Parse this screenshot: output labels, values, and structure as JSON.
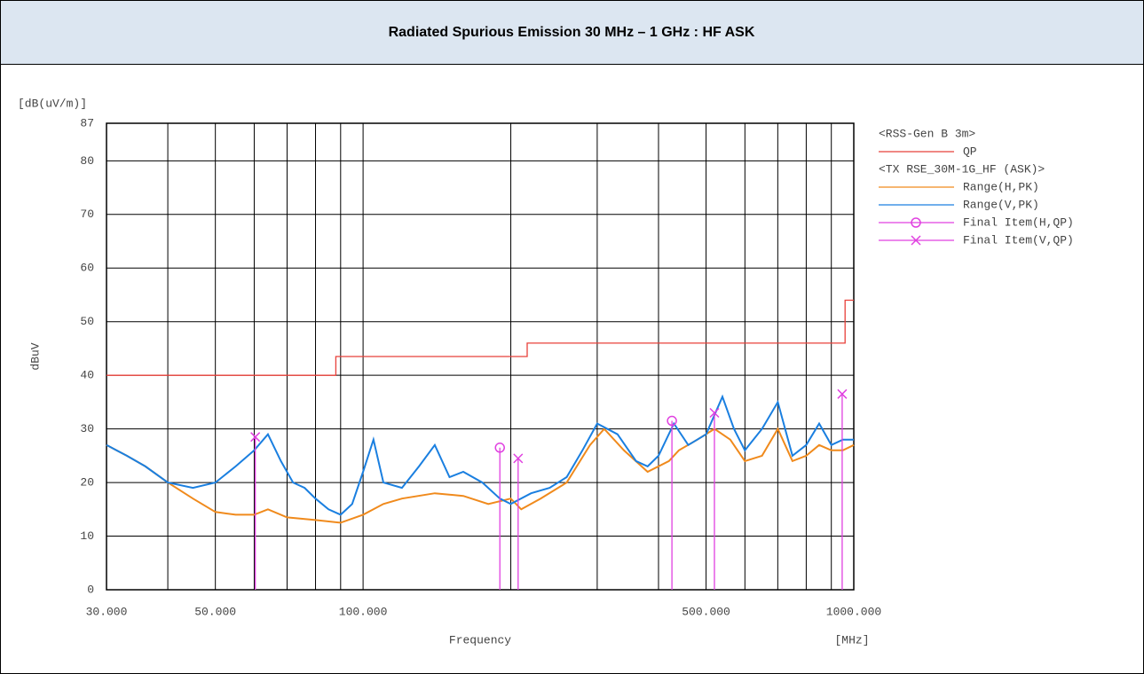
{
  "header": {
    "title": "Radiated Spurious Emission 30 MHz – 1 GHz : HF ASK"
  },
  "chart_data": {
    "type": "line",
    "y_unit": "[dB(uV/m)]",
    "ylabel": "dBuV",
    "xlabel": "Frequency",
    "x_unit": "[MHz]",
    "xlog": true,
    "grid": true,
    "xlim": [
      30,
      1000
    ],
    "ylim": [
      0,
      87
    ],
    "xticks": [
      {
        "value": 30,
        "label": "30.000"
      },
      {
        "value": 50,
        "label": "50.000"
      },
      {
        "value": 100,
        "label": "100.000"
      },
      {
        "value": 500,
        "label": "500.000"
      },
      {
        "value": 1000,
        "label": "1000.000"
      }
    ],
    "xminor": [
      40,
      60,
      70,
      80,
      90,
      200,
      300,
      400,
      600,
      700,
      800,
      900
    ],
    "yticks": [
      0,
      10,
      20,
      30,
      40,
      50,
      60,
      70,
      80,
      87
    ],
    "legend_titles": [
      "<RSS-Gen B 3m>",
      "<TX RSE_30M-1G_HF (ASK)>"
    ],
    "series": [
      {
        "name": "QP",
        "color": "#e8403a",
        "kind": "line",
        "x": [
          30,
          88,
          88,
          216,
          216,
          960,
          960,
          1000
        ],
        "values": [
          40,
          40,
          43.5,
          43.5,
          46,
          46,
          54,
          54
        ]
      },
      {
        "name": "Range(H,PK)",
        "color": "#f08a1c",
        "kind": "line",
        "x": [
          30,
          33,
          36,
          40,
          45,
          50,
          55,
          60,
          64,
          70,
          80,
          90,
          100,
          110,
          120,
          140,
          160,
          180,
          200,
          210,
          230,
          260,
          290,
          310,
          340,
          380,
          420,
          440,
          480,
          520,
          560,
          600,
          650,
          700,
          750,
          800,
          850,
          900,
          950,
          1000
        ],
        "values": [
          27,
          25,
          23,
          20,
          17,
          14.5,
          14,
          14,
          15,
          13.5,
          13,
          12.5,
          14,
          16,
          17,
          18,
          17.5,
          16,
          17,
          15,
          17,
          20,
          27,
          30,
          26,
          22,
          24,
          26,
          28,
          30,
          28,
          24,
          25,
          30,
          24,
          25,
          27,
          26,
          26,
          27
        ]
      },
      {
        "name": "Range(V,PK)",
        "color": "#1a7fe0",
        "kind": "line",
        "x": [
          30,
          33,
          36,
          40,
          45,
          50,
          55,
          60,
          64,
          68,
          72,
          76,
          80,
          85,
          90,
          95,
          100,
          105,
          110,
          120,
          130,
          140,
          150,
          160,
          175,
          190,
          200,
          220,
          240,
          260,
          280,
          300,
          330,
          360,
          380,
          400,
          430,
          460,
          500,
          540,
          570,
          600,
          650,
          700,
          750,
          800,
          850,
          900,
          950,
          1000
        ],
        "values": [
          27,
          25,
          23,
          20,
          19,
          20,
          23,
          26,
          29,
          24,
          20,
          19,
          17,
          15,
          14,
          16,
          22,
          28,
          20,
          19,
          23,
          27,
          21,
          22,
          20,
          17,
          16,
          18,
          19,
          21,
          26,
          31,
          29,
          24,
          23,
          25,
          31,
          27,
          29,
          36,
          30,
          26,
          30,
          35,
          25,
          27,
          31,
          27,
          28,
          28
        ]
      },
      {
        "name": "Final Item(H,QP)",
        "color": "#e040e0",
        "kind": "points",
        "marker": "o",
        "x": [
          190,
          426
        ],
        "values": [
          26.5,
          31.5
        ]
      },
      {
        "name": "Final Item(V,QP)",
        "color": "#e040e0",
        "kind": "points",
        "marker": "x",
        "x": [
          60.3,
          207,
          520,
          947
        ],
        "values": [
          28.5,
          24.5,
          33,
          36.5
        ]
      }
    ]
  }
}
